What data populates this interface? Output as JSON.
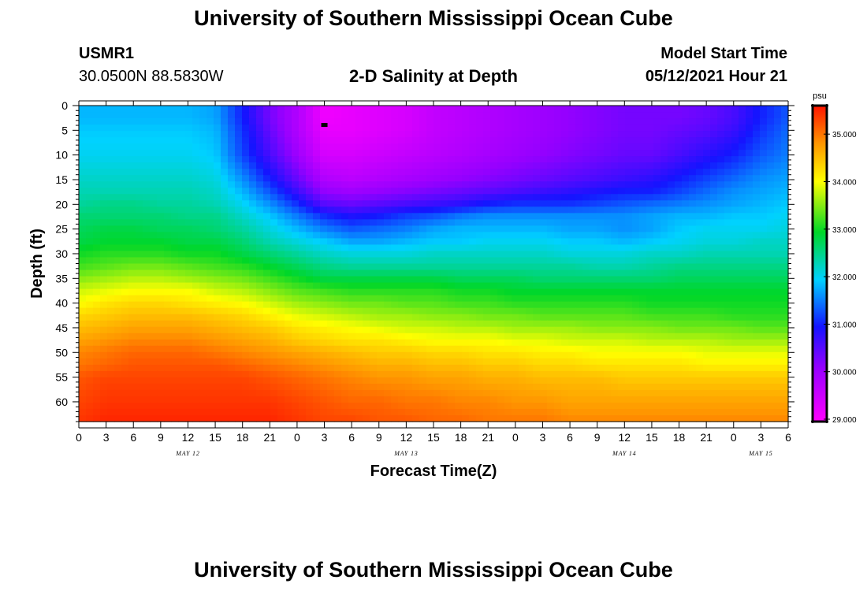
{
  "header": {
    "title": "University of Southern Mississippi Ocean Cube",
    "station_id": "USMR1",
    "station_coords": "30.0500N  88.5830W",
    "plot_title": "2-D Salinity at Depth",
    "model_start_label": "Model Start Time",
    "model_start_value": "05/12/2021 Hour 21"
  },
  "footer": {
    "title": "University of Southern Mississippi Ocean Cube"
  },
  "chart_data": {
    "type": "heatmap",
    "title": "2-D Salinity at Depth",
    "xlabel": "Forecast Time(Z)",
    "ylabel": "Depth (ft)",
    "xlim": [
      0,
      78
    ],
    "ylim": [
      64,
      0
    ],
    "x_tick_labels": [
      "0",
      "3",
      "6",
      "9",
      "12",
      "15",
      "18",
      "21",
      "0",
      "3",
      "6",
      "9",
      "12",
      "15",
      "18",
      "21",
      "0",
      "3",
      "6",
      "9",
      "12",
      "15",
      "18",
      "21",
      "0",
      "3",
      "6"
    ],
    "y_tick_labels": [
      "0",
      "5",
      "10",
      "15",
      "20",
      "25",
      "30",
      "35",
      "40",
      "45",
      "50",
      "55",
      "60"
    ],
    "day_labels": [
      {
        "text": "MAY 12",
        "hours": 12
      },
      {
        "text": "MAY 13",
        "hours": 36
      },
      {
        "text": "MAY 14",
        "hours": 60
      },
      {
        "text": "MAY 15",
        "hours": 75
      }
    ],
    "colorbar": {
      "unit": "psu",
      "min": 28.95,
      "max": 35.6,
      "tick_labels": [
        "29.000",
        "30.000",
        "31.000",
        "32.000",
        "33.000",
        "34.000",
        "35.000"
      ],
      "tick_values": [
        29,
        30,
        31,
        32,
        33,
        34,
        35
      ]
    },
    "series_x_hours": [
      0,
      3,
      6,
      9,
      12,
      15,
      18,
      21,
      24,
      27,
      30,
      33,
      36,
      39,
      42,
      45,
      48,
      51,
      54,
      57,
      60,
      63,
      66,
      69,
      72,
      75,
      78
    ],
    "series_depth_ft": [
      0,
      2.5,
      5,
      10,
      15,
      17.5,
      20,
      22.5,
      25,
      27.5,
      30,
      32.5,
      35,
      37.5,
      40,
      42.5,
      45,
      47.5,
      50,
      52.5,
      55,
      60,
      64
    ],
    "salinity_psu": [
      [
        31.8,
        31.8,
        31.8,
        31.8,
        31.8,
        31.7,
        31.0,
        30.3,
        29.8,
        29.1,
        29.2,
        29.3,
        29.4,
        29.6,
        29.7,
        29.8,
        29.9,
        30.0,
        30.1,
        30.2,
        30.3,
        30.3,
        30.3,
        30.4,
        30.6,
        31.0,
        31.3
      ],
      [
        31.8,
        31.8,
        31.8,
        31.8,
        31.8,
        31.7,
        31.0,
        30.3,
        29.8,
        29.1,
        29.2,
        29.3,
        29.4,
        29.6,
        29.7,
        29.8,
        29.9,
        30.0,
        30.1,
        30.2,
        30.3,
        30.3,
        30.3,
        30.4,
        30.6,
        31.0,
        31.3
      ],
      [
        31.9,
        31.9,
        31.9,
        31.9,
        31.9,
        31.8,
        31.1,
        30.4,
        29.8,
        29.2,
        29.2,
        29.3,
        29.4,
        29.6,
        29.7,
        29.8,
        29.9,
        30.0,
        30.1,
        30.2,
        30.3,
        30.3,
        30.4,
        30.5,
        30.7,
        31.1,
        31.4
      ],
      [
        32.0,
        32.0,
        32.0,
        32.0,
        32.0,
        31.9,
        31.2,
        30.6,
        30.0,
        29.4,
        29.4,
        29.5,
        29.6,
        29.7,
        29.8,
        29.9,
        30.0,
        30.1,
        30.2,
        30.3,
        30.4,
        30.4,
        30.6,
        30.8,
        31.0,
        31.3,
        31.5
      ],
      [
        32.2,
        32.2,
        32.2,
        32.2,
        32.2,
        32.1,
        31.6,
        31.0,
        30.4,
        29.8,
        29.7,
        29.8,
        29.9,
        30.0,
        30.1,
        30.2,
        30.3,
        30.4,
        30.5,
        30.6,
        30.7,
        30.8,
        31.0,
        31.2,
        31.4,
        31.6,
        31.7
      ],
      [
        32.3,
        32.3,
        32.3,
        32.3,
        32.3,
        32.2,
        31.8,
        31.3,
        30.7,
        30.1,
        30.0,
        30.1,
        30.2,
        30.3,
        30.4,
        30.5,
        30.6,
        30.7,
        30.8,
        30.9,
        31.0,
        31.0,
        31.2,
        31.4,
        31.6,
        31.7,
        31.8
      ],
      [
        32.4,
        32.5,
        32.5,
        32.4,
        32.4,
        32.3,
        32.0,
        31.6,
        31.1,
        30.5,
        30.4,
        30.5,
        30.6,
        30.7,
        30.8,
        31.0,
        31.1,
        31.1,
        31.1,
        31.2,
        31.3,
        31.4,
        31.5,
        31.6,
        31.7,
        31.8,
        31.9
      ],
      [
        32.6,
        32.6,
        32.6,
        32.6,
        32.5,
        32.5,
        32.2,
        31.9,
        31.5,
        31.1,
        30.9,
        31.0,
        31.2,
        31.3,
        31.5,
        31.6,
        31.6,
        31.6,
        31.6,
        31.6,
        31.6,
        31.7,
        31.8,
        31.8,
        31.9,
        31.9,
        32.0
      ],
      [
        32.7,
        32.8,
        32.8,
        32.7,
        32.7,
        32.6,
        32.4,
        32.1,
        31.8,
        31.5,
        31.3,
        31.4,
        31.5,
        31.7,
        31.8,
        31.8,
        31.8,
        31.8,
        31.7,
        31.7,
        31.6,
        31.7,
        31.9,
        32.0,
        32.0,
        32.0,
        32.1
      ],
      [
        32.8,
        32.9,
        32.9,
        32.9,
        32.8,
        32.8,
        32.6,
        32.3,
        32.1,
        31.9,
        31.7,
        31.7,
        31.8,
        31.9,
        31.9,
        32.0,
        32.0,
        32.0,
        31.9,
        31.9,
        31.8,
        31.9,
        32.0,
        32.1,
        32.1,
        32.2,
        32.2
      ],
      [
        33.0,
        33.1,
        33.1,
        33.1,
        33.0,
        33.0,
        32.8,
        32.6,
        32.4,
        32.2,
        32.1,
        32.1,
        32.1,
        32.2,
        32.2,
        32.2,
        32.2,
        32.2,
        32.1,
        32.1,
        32.1,
        32.2,
        32.2,
        32.3,
        32.3,
        32.3,
        32.3
      ],
      [
        33.2,
        33.3,
        33.4,
        33.4,
        33.3,
        33.2,
        33.1,
        32.9,
        32.7,
        32.5,
        32.4,
        32.4,
        32.4,
        32.4,
        32.4,
        32.4,
        32.4,
        32.4,
        32.4,
        32.3,
        32.3,
        32.4,
        32.5,
        32.5,
        32.5,
        32.5,
        32.5
      ],
      [
        33.5,
        33.6,
        33.7,
        33.7,
        33.6,
        33.5,
        33.4,
        33.2,
        33.0,
        32.8,
        32.8,
        32.8,
        32.8,
        32.8,
        32.7,
        32.7,
        32.7,
        32.6,
        32.6,
        32.6,
        32.6,
        32.6,
        32.7,
        32.7,
        32.7,
        32.7,
        32.7
      ],
      [
        33.8,
        33.9,
        34.0,
        34.0,
        34.0,
        33.8,
        33.7,
        33.5,
        33.3,
        33.2,
        33.1,
        33.1,
        33.1,
        33.1,
        33.0,
        33.0,
        32.9,
        32.9,
        32.9,
        32.9,
        32.9,
        32.9,
        32.9,
        32.9,
        32.9,
        32.9,
        32.9
      ],
      [
        34.0,
        34.2,
        34.3,
        34.3,
        34.2,
        34.1,
        34.0,
        33.8,
        33.6,
        33.5,
        33.4,
        33.4,
        33.3,
        33.3,
        33.2,
        33.2,
        33.1,
        33.1,
        33.1,
        33.1,
        33.1,
        33.0,
        33.0,
        33.0,
        33.0,
        33.0,
        33.0
      ],
      [
        34.3,
        34.4,
        34.5,
        34.5,
        34.5,
        34.4,
        34.3,
        34.1,
        33.9,
        33.8,
        33.7,
        33.6,
        33.6,
        33.5,
        33.5,
        33.4,
        33.4,
        33.3,
        33.3,
        33.3,
        33.3,
        33.2,
        33.2,
        33.2,
        33.1,
        33.1,
        33.1
      ],
      [
        34.5,
        34.6,
        34.7,
        34.7,
        34.7,
        34.6,
        34.5,
        34.4,
        34.2,
        34.1,
        34.0,
        33.9,
        33.8,
        33.8,
        33.7,
        33.7,
        33.6,
        33.6,
        33.6,
        33.5,
        33.5,
        33.5,
        33.4,
        33.4,
        33.4,
        33.3,
        33.3
      ],
      [
        34.7,
        34.8,
        34.9,
        34.9,
        34.9,
        34.8,
        34.7,
        34.6,
        34.4,
        34.3,
        34.2,
        34.2,
        34.1,
        34.0,
        34.0,
        34.0,
        33.9,
        33.9,
        33.8,
        33.8,
        33.8,
        33.7,
        33.7,
        33.7,
        33.6,
        33.6,
        33.6
      ],
      [
        34.9,
        35.0,
        35.1,
        35.1,
        35.1,
        35.0,
        34.9,
        34.8,
        34.7,
        34.6,
        34.5,
        34.4,
        34.4,
        34.3,
        34.3,
        34.2,
        34.2,
        34.1,
        34.1,
        34.0,
        34.0,
        34.0,
        34.0,
        33.9,
        33.9,
        33.9,
        33.9
      ],
      [
        35.0,
        35.1,
        35.2,
        35.2,
        35.2,
        35.2,
        35.1,
        35.0,
        34.9,
        34.8,
        34.7,
        34.6,
        34.6,
        34.5,
        34.5,
        34.4,
        34.4,
        34.3,
        34.3,
        34.2,
        34.2,
        34.2,
        34.2,
        34.1,
        34.1,
        34.1,
        34.1
      ],
      [
        35.2,
        35.3,
        35.3,
        35.3,
        35.3,
        35.3,
        35.3,
        35.2,
        35.1,
        35.0,
        34.9,
        34.8,
        34.8,
        34.7,
        34.7,
        34.6,
        34.6,
        34.5,
        34.5,
        34.5,
        34.4,
        34.4,
        34.4,
        34.4,
        34.4,
        34.4,
        34.4
      ],
      [
        35.3,
        35.4,
        35.4,
        35.4,
        35.4,
        35.4,
        35.4,
        35.4,
        35.3,
        35.2,
        35.1,
        35.1,
        35.0,
        35.0,
        34.9,
        34.9,
        34.8,
        34.8,
        34.7,
        34.7,
        34.7,
        34.7,
        34.7,
        34.7,
        34.7,
        34.7,
        34.7
      ],
      [
        35.4,
        35.5,
        35.5,
        35.5,
        35.5,
        35.5,
        35.5,
        35.5,
        35.4,
        35.3,
        35.3,
        35.2,
        35.2,
        35.1,
        35.1,
        35.0,
        35.0,
        35.0,
        34.9,
        34.9,
        34.9,
        34.9,
        34.9,
        34.9,
        34.9,
        34.9,
        34.9
      ]
    ],
    "marker": {
      "hours": 27,
      "depth_ft": 4
    }
  }
}
